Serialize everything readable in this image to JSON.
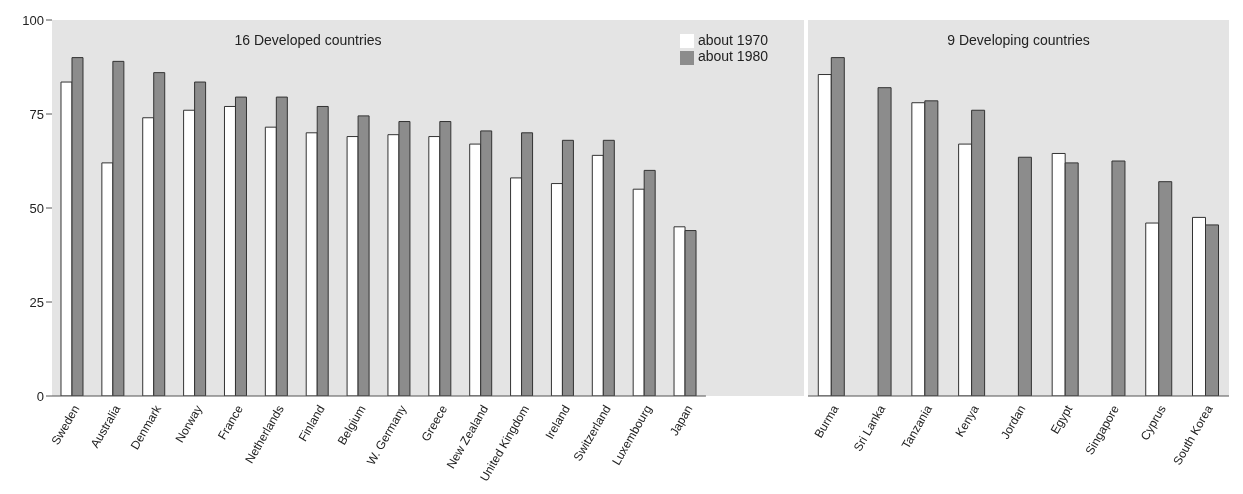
{
  "chart_data": [
    {
      "type": "bar",
      "title": "16 Developed countries",
      "categories": [
        "Sweden",
        "Australia",
        "Denmark",
        "Norway",
        "France",
        "Netherlands",
        "Finland",
        "Belgium",
        "W. Germany",
        "Greece",
        "New Zealand",
        "United Kingdom",
        "Ireland",
        "Switzerland",
        "Luxembourg",
        "Japan"
      ],
      "series": [
        {
          "name": "about 1970",
          "color": "#ffffff",
          "values": [
            83.5,
            62,
            74,
            76,
            77,
            71.5,
            70,
            69,
            69.5,
            69,
            67,
            58,
            56.5,
            64,
            55,
            45
          ]
        },
        {
          "name": "about 1980",
          "color": "#8c8c8c",
          "values": [
            90,
            89,
            86,
            83.5,
            79.5,
            79.5,
            77,
            74.5,
            73,
            73,
            70.5,
            70,
            68,
            68,
            60,
            44
          ]
        }
      ],
      "ylim": [
        0,
        100
      ],
      "yticks": [
        0,
        25,
        50,
        75,
        100
      ],
      "legend": "top right"
    },
    {
      "type": "bar",
      "title": "9 Developing countries",
      "categories": [
        "Burma",
        "Sri Lanka",
        "Tanzania",
        "Kenya",
        "Jordan",
        "Egypt",
        "Singapore",
        "Cyprus",
        "South Korea"
      ],
      "series": [
        {
          "color": "#ffffff",
          "values": [
            85.5,
            null,
            78,
            67,
            null,
            64.5,
            null,
            46,
            47.5
          ]
        },
        {
          "color": "#8c8c8c",
          "values": [
            90,
            82,
            78.5,
            76,
            63.5,
            62,
            62.5,
            57,
            45.5
          ]
        }
      ],
      "ylim": [
        0,
        100
      ],
      "yticks": [
        0,
        25,
        50,
        75,
        100
      ],
      "tick_labels": "x"
    }
  ]
}
